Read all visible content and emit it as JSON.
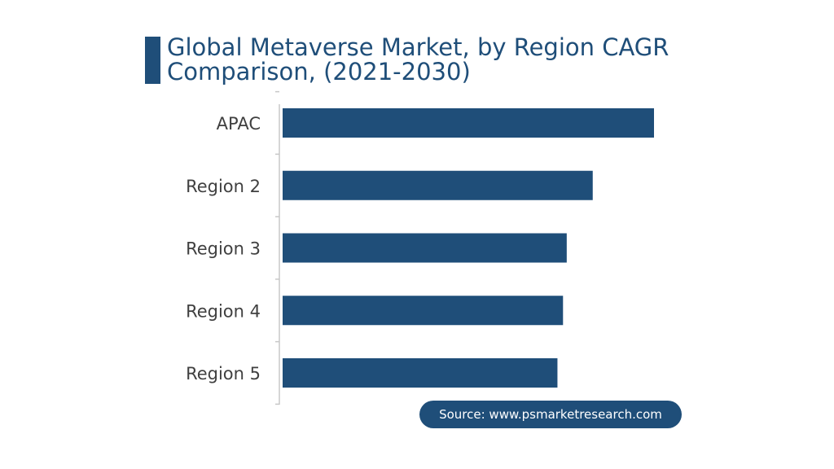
{
  "title": {
    "line1": "Global Metaverse Market, by Region CAGR",
    "line2": "Comparison, (2021-2030)"
  },
  "source": "Source: www.psmarketresearch.com",
  "colors": {
    "bar": "#1f4e79",
    "axis": "#c8c8c8",
    "label": "#404040"
  },
  "chart_data": {
    "type": "bar",
    "orientation": "horizontal",
    "title": "Global Metaverse Market, by Region CAGR Comparison, (2021-2030)",
    "categories": [
      "APAC",
      "Region 2",
      "Region 3",
      "Region 4",
      "Region 5"
    ],
    "values": [
      100,
      83.5,
      76.5,
      75.5,
      74
    ],
    "value_note": "relative bar lengths; no value axis or data labels shown",
    "xlabel": "",
    "ylabel": "",
    "grid": false,
    "legend": "none"
  }
}
